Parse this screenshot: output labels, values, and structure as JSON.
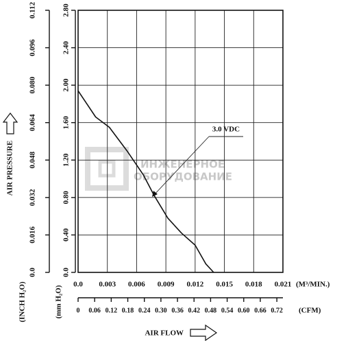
{
  "chart_data": {
    "type": "line",
    "y_label": "AIR PRESSURE",
    "y_unit_mm": "(mm H₂O)",
    "y_unit_inch": "(INCH H₂O)",
    "x_unit": "(M³/MIN.)",
    "x2_unit": "(CFM)",
    "x_label": "AIR FLOW",
    "watermark": [
      "ИНЖЕНЕРНОЕ",
      "ОБОРУДОВАНИЕ"
    ],
    "annotation": "3.0 VDC",
    "xlim": [
      0,
      0.021
    ],
    "xticks": [
      {
        "value": 0,
        "label": "0.0"
      },
      0.003,
      0.006,
      0.009,
      0.012,
      0.015,
      0.018,
      0.021
    ],
    "x2lim": [
      0,
      0.742
    ],
    "x2ticks": [
      0,
      0.06,
      0.12,
      0.18,
      0.24,
      {
        "value": 0.3,
        "label": "0.30"
      },
      0.36,
      0.42,
      0.48,
      0.54,
      {
        "value": 0.6,
        "label": "0.60"
      },
      0.66,
      0.72
    ],
    "ylim": [
      0,
      2.8
    ],
    "yticks": [
      {
        "value": 0,
        "label": "0.0"
      },
      {
        "value": 0.4,
        "label": "0.40"
      },
      {
        "value": 0.8,
        "label": "0.80"
      },
      {
        "value": 1.2,
        "label": "1.20"
      },
      {
        "value": 1.6,
        "label": "1.60"
      },
      {
        "value": 2,
        "label": "2.00"
      },
      {
        "value": 2.4,
        "label": "2.40"
      },
      {
        "value": 2.8,
        "label": "2.80"
      }
    ],
    "y2lim": [
      0,
      0.112
    ],
    "y2ticks": [
      {
        "value": 0,
        "label": "0.0"
      },
      0.016,
      0.032,
      0.048,
      0.064,
      {
        "value": 0.08,
        "label": "0.080"
      },
      0.096,
      0.112
    ],
    "grid": true,
    "series": [
      {
        "name": "3.0 VDC",
        "color": "#111111",
        "x": [
          0,
          0.0018,
          0.0032,
          0.005,
          0.0067,
          0.0078,
          0.0092,
          0.0106,
          0.012,
          0.0131,
          0.0139
        ],
        "values": [
          1.94,
          1.66,
          1.55,
          1.3,
          1.04,
          0.82,
          0.58,
          0.42,
          0.29,
          0.09,
          0
        ]
      }
    ]
  }
}
